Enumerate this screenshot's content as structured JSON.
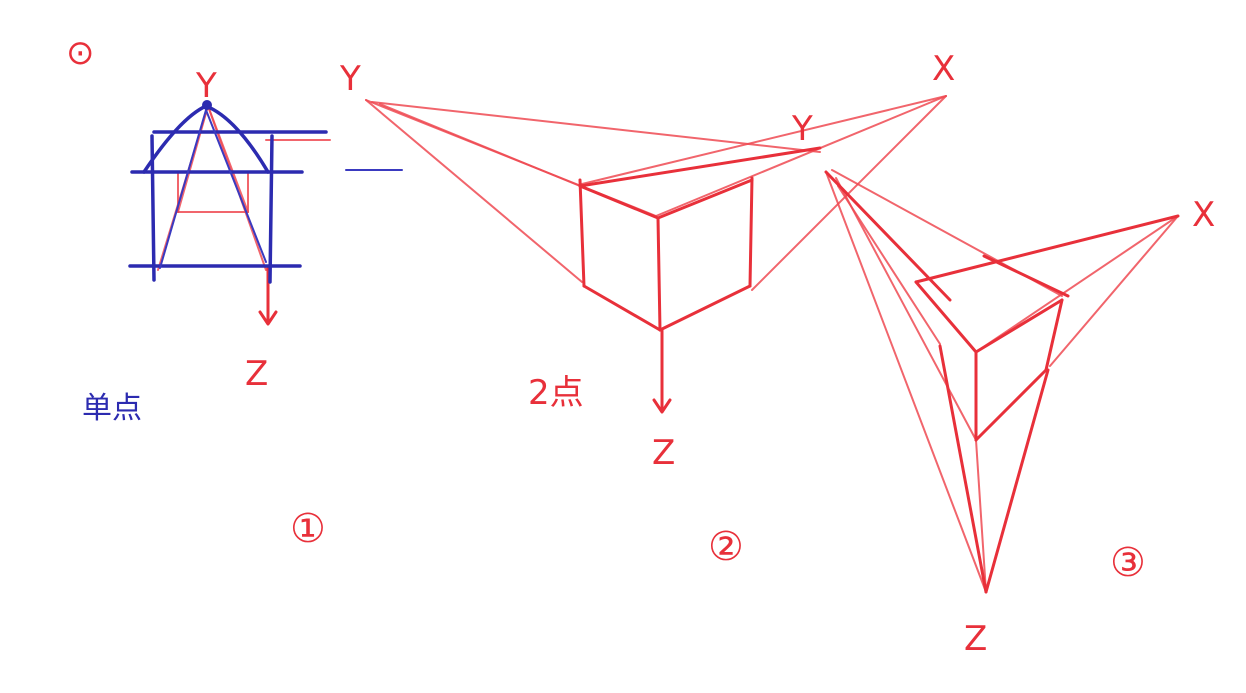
{
  "colors": {
    "sketch_red": "#e8303a",
    "sketch_blue": "#2c2bb0",
    "background": "#ffffff"
  },
  "panel1": {
    "corner_mark": "⊙",
    "label_y": "Y",
    "label_z": "Z",
    "caption": "单点",
    "number": "①"
  },
  "panel2": {
    "label_y": "Y",
    "label_x": "X",
    "label_z": "Z",
    "caption": "2点",
    "number": "②"
  },
  "panel3": {
    "label_y": "Y",
    "label_x": "X",
    "label_z": "Z",
    "number": "③"
  }
}
